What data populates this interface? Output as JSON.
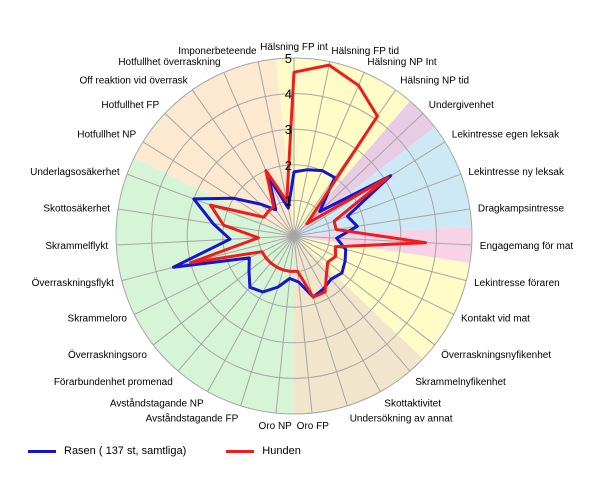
{
  "chart_data": {
    "type": "radar",
    "categories": [
      "Hälsning FP int",
      "Hälsning FP tid",
      "Hälsning NP Int",
      "Hälsning NP tid",
      "Undergivenhet",
      "Lekintresse egen leksak",
      "Lekintresse ny leksak",
      "Dragkampsintresse",
      "Engagemang för mat",
      "Lekintresse föraren",
      "Kontakt vid mat",
      "Överraskningsnyfikenhet",
      "Skrammelnyfikenhet",
      "Skottaktivitet",
      "Undersökning av annat",
      "Oro FP",
      "Oro NP",
      "Avståndstagande FP",
      "Avståndstagande NP",
      "Förarbundenhet promenad",
      "Överraskningsoro",
      "Skrammeloro",
      "Överraskningsflykt",
      "Skrammelflykt",
      "Skottosäkerhet",
      "Underlagsosäkerhet",
      "Hotfullhet NP",
      "Hotfullhet FP",
      "Off reaktion vid överrask",
      "Hotfullhet överraskning",
      "Imponerbeteende"
    ],
    "rmin": 0,
    "rmax": 5,
    "ticks": [
      "1",
      "2",
      "3",
      "4",
      "5"
    ],
    "grid": true,
    "legend_position": "bottom-left",
    "sectors": [
      {
        "from": 0,
        "to": 3,
        "color": "#fffcc8"
      },
      {
        "from": 4,
        "to": 4,
        "color": "#e8cce6"
      },
      {
        "from": 5,
        "to": 7,
        "color": "#cde9f6"
      },
      {
        "from": 8,
        "to": 8,
        "color": "#f8d2e6"
      },
      {
        "from": 9,
        "to": 11,
        "color": "#fffcc8"
      },
      {
        "from": 12,
        "to": 15,
        "color": "#f1e6cc"
      },
      {
        "from": 16,
        "to": 25,
        "color": "#d6f4d6"
      },
      {
        "from": 26,
        "to": 30,
        "color": "#fde9d0"
      }
    ],
    "series": [
      {
        "name": "Rasen ( 137 st, samtliga)",
        "color": "#1515cc",
        "values": [
          1.8,
          1.9,
          2.0,
          2.0,
          1.0,
          3.2,
          1.6,
          1.8,
          1.2,
          1.5,
          1.6,
          1.7,
          1.6,
          1.7,
          1.8,
          1.3,
          1.2,
          1.5,
          1.8,
          1.9,
          1.6,
          1.4,
          3.5,
          1.8,
          2.3,
          3.0,
          2.0,
          1.3,
          0.9,
          1.8,
          0.8
        ]
      },
      {
        "name": "Hunden",
        "color": "#ee1c1c",
        "values": [
          4.6,
          4.9,
          4.6,
          4.1,
          0.5,
          3.1,
          1.2,
          1.2,
          3.7,
          1.2,
          1.3,
          1.2,
          1.4,
          1.8,
          1.8,
          1.0,
          1.0,
          1.0,
          1.0,
          1.0,
          1.0,
          1.0,
          3.0,
          1.0,
          2.0,
          2.5,
          1.0,
          1.0,
          1.0,
          2.0,
          1.0
        ]
      }
    ]
  }
}
